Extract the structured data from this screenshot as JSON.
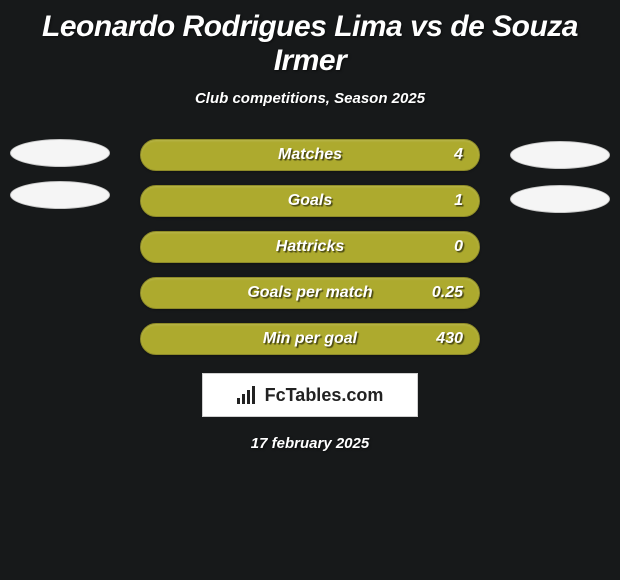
{
  "header": {
    "title": "Leonardo Rodrigues Lima vs de Souza Irmer",
    "subtitle": "Club competitions, Season 2025"
  },
  "stats": {
    "type": "horizontal-pill-bars",
    "bar_color": "#adaa2e",
    "bar_border_color": "#8e8b28",
    "text_color": "#ffffff",
    "items": [
      {
        "label": "Matches",
        "value_right": "4"
      },
      {
        "label": "Goals",
        "value_right": "1"
      },
      {
        "label": "Hattricks",
        "value_right": "0"
      },
      {
        "label": "Goals per match",
        "value_right": "0.25"
      },
      {
        "label": "Min per goal",
        "value_right": "430"
      }
    ]
  },
  "left_ellipses_count": 2,
  "right_ellipses_count": 2,
  "branding": {
    "icon_name": "bar-chart-icon",
    "text": "FcTables.com"
  },
  "date": "17 february 2025",
  "colors": {
    "background": "#17191a",
    "ellipse_fill": "#f5f5f5",
    "brand_box_bg": "#ffffff"
  },
  "typography": {
    "title_fontsize": 30,
    "subtitle_fontsize": 15,
    "stat_label_fontsize": 16,
    "font_style": "italic",
    "font_weight": "bold"
  }
}
